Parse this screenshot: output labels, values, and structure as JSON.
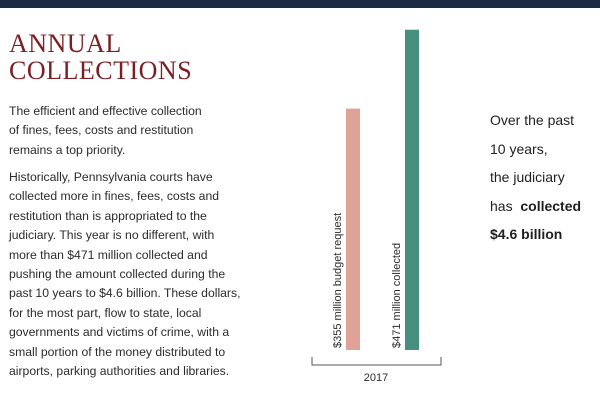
{
  "title_lines": [
    "ANNUAL",
    "COLLECTIONS"
  ],
  "paragraph1": [
    "The efficient and effective collection",
    "of fines, fees, costs and restitution",
    "remains a top priority."
  ],
  "paragraph2": [
    "Historically, Pennsylvania courts have",
    "collected more in fines, fees, costs and",
    "restitution than is appropriated to the",
    "judiciary. This year is no different, with",
    "more than $471 million collected and",
    "pushing the amount collected during the",
    "past 10 years to $4.6 billion. These dollars,",
    "for the most part, flow to state, local",
    "governments and victims of crime, with a",
    "small portion of the money distributed to",
    "airports, parking authorities and libraries."
  ],
  "callout": {
    "line1": "Over the past",
    "line2": "10 years,",
    "line3": "the judiciary",
    "line4_pre": "has",
    "line4_bold": "collected",
    "line5_bold": "$4.6 billion"
  },
  "colors": {
    "title": "#7a1f23",
    "top_bar": "#1c2a44",
    "budget_bar": "#e0a197",
    "collected_bar": "#47907f"
  },
  "chart_data": {
    "type": "bar",
    "categories": [
      "2017"
    ],
    "series": [
      {
        "name": "$355 million budget request",
        "values": [
          355
        ]
      },
      {
        "name": "$471 million collected",
        "values": [
          471
        ]
      }
    ],
    "title": "",
    "xlabel": "",
    "ylabel": "",
    "ylim": [
      0,
      500
    ],
    "grid": false,
    "unit": "million dollars"
  }
}
